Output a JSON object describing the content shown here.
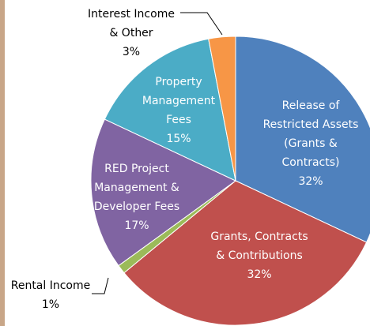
{
  "chart_data": {
    "type": "pie",
    "categories": [
      "Release of\nRestricted Assets\n(Grants &\nContracts)",
      "Grants, Contracts\n& Contributions",
      "Rental Income",
      "RED Project\nManagement &\nDeveloper Fees",
      "Property\nManagement\nFees",
      "Interest Income\n& Other"
    ],
    "values": [
      32,
      32,
      1,
      17,
      15,
      3
    ],
    "value_labels": [
      "32%",
      "32%",
      "1%",
      "17%",
      "15%",
      "3%"
    ],
    "colors": [
      "#4f81bd",
      "#c0504d",
      "#9bbb59",
      "#8064a2",
      "#4bacc6",
      "#f79646"
    ]
  }
}
